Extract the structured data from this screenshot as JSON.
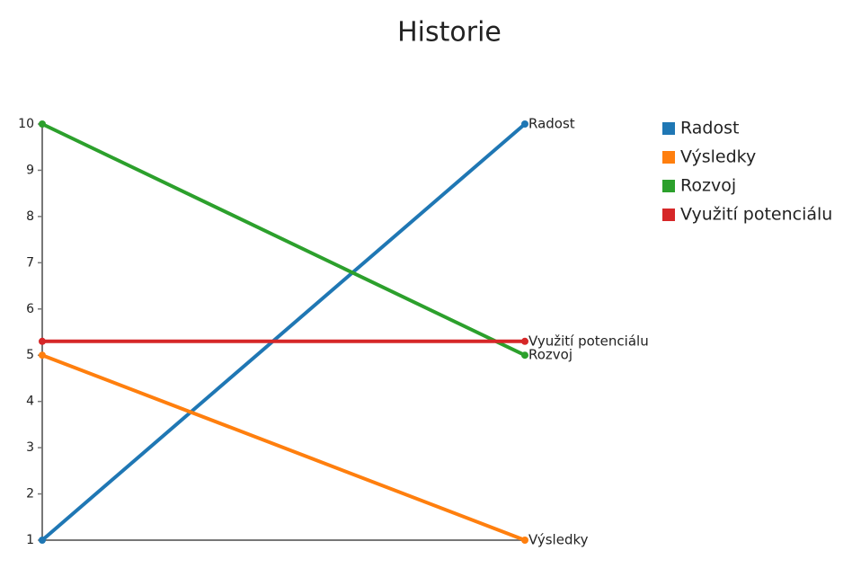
{
  "chart_data": {
    "type": "line",
    "title": "Historie",
    "categories": [
      null,
      null
    ],
    "series": [
      {
        "name": "Radost",
        "color": "#1f77b4",
        "values": [
          1,
          10
        ]
      },
      {
        "name": "Výsledky",
        "color": "#ff7f0e",
        "values": [
          5,
          1
        ]
      },
      {
        "name": "Rozvoj",
        "color": "#2ca02c",
        "values": [
          10,
          5
        ]
      },
      {
        "name": "Využití potenciálu",
        "color": "#d62728",
        "values": [
          5.3,
          5.3
        ]
      }
    ],
    "ylim": [
      1,
      10
    ],
    "yticks": [
      1,
      2,
      3,
      4,
      5,
      6,
      7,
      8,
      9,
      10
    ],
    "legend": "right",
    "end_labels": true
  }
}
